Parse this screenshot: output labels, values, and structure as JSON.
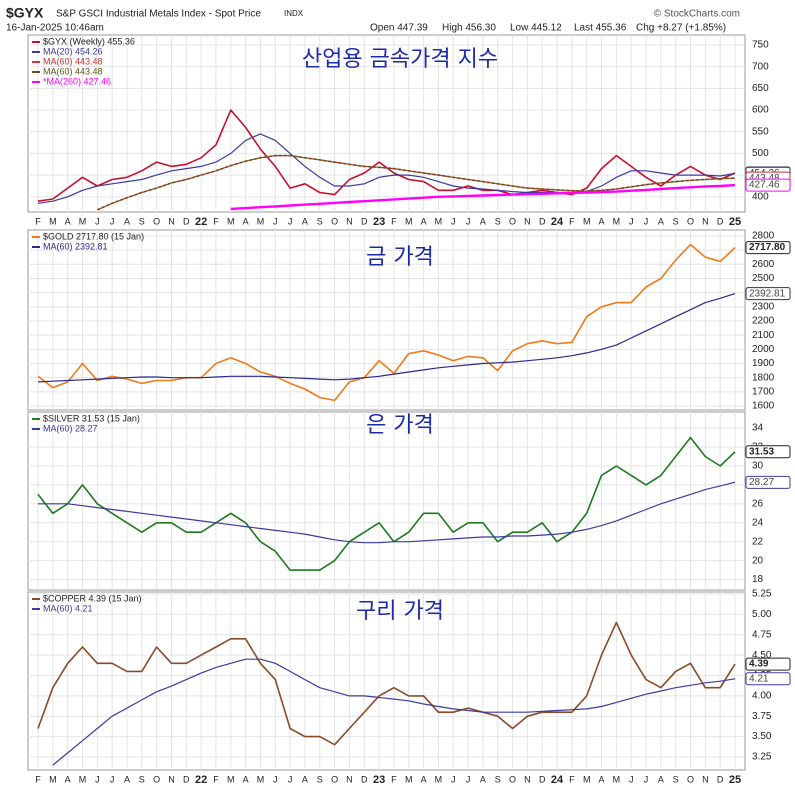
{
  "header": {
    "symbol": "$GYX",
    "name": "S&P GSCI Industrial Metals Index - Spot Price",
    "exchange": "INDX",
    "credit": "© StockCharts.com",
    "date": "16-Jan-2025 10:46am",
    "open": "Open 447.39",
    "high": "High 456.30",
    "low": "Low 445.12",
    "last": "Last 455.36",
    "change": "Chg +8.27 (+1.85%)"
  },
  "chart_data": [
    {
      "type": "line",
      "annotation": "산업용 금속가격 지수",
      "categories": [
        "F",
        "M",
        "A",
        "M",
        "J",
        "J",
        "A",
        "S",
        "O",
        "N",
        "D",
        "22",
        "F",
        "M",
        "A",
        "M",
        "J",
        "J",
        "A",
        "S",
        "O",
        "N",
        "D",
        "23",
        "F",
        "M",
        "A",
        "M",
        "J",
        "J",
        "A",
        "S",
        "O",
        "N",
        "D",
        "24",
        "F",
        "M",
        "A",
        "M",
        "J",
        "J",
        "A",
        "S",
        "O",
        "N",
        "D",
        "25"
      ],
      "ylim": [
        365,
        773
      ],
      "yticks": [
        400,
        450,
        500,
        550,
        600,
        650,
        700,
        750
      ],
      "grid": true,
      "series": [
        {
          "name": "$GYX (Weekly) 455.36",
          "color": "#c8102e",
          "width": 1.6,
          "end_label": "455.36",
          "values": [
            390,
            395,
            420,
            445,
            425,
            440,
            445,
            460,
            480,
            470,
            475,
            490,
            520,
            600,
            560,
            510,
            470,
            420,
            430,
            410,
            405,
            440,
            455,
            480,
            455,
            440,
            435,
            415,
            415,
            425,
            415,
            415,
            405,
            410,
            415,
            410,
            405,
            420,
            465,
            495,
            470,
            445,
            425,
            450,
            470,
            450,
            440,
            455
          ]
        },
        {
          "name": "MA(20) 454.26",
          "color": "#3b3b9e",
          "width": 1.2,
          "end_label": "454.26",
          "values": [
            385,
            390,
            400,
            415,
            425,
            430,
            435,
            440,
            450,
            460,
            465,
            470,
            480,
            500,
            530,
            545,
            530,
            500,
            470,
            445,
            425,
            425,
            430,
            445,
            450,
            450,
            445,
            435,
            425,
            420,
            418,
            415,
            412,
            410,
            410,
            410,
            410,
            412,
            425,
            445,
            460,
            460,
            455,
            450,
            450,
            450,
            448,
            454
          ]
        },
        {
          "name": "MA(60) 443.48",
          "color": "#d03030",
          "width": 1.2,
          "end_label": "443.48",
          "values": [
            null,
            null,
            null,
            null,
            370,
            385,
            398,
            410,
            420,
            432,
            440,
            450,
            460,
            472,
            482,
            490,
            495,
            495,
            490,
            485,
            480,
            475,
            470,
            468,
            465,
            460,
            455,
            450,
            445,
            440,
            435,
            430,
            425,
            420,
            418,
            416,
            414,
            413,
            415,
            418,
            423,
            428,
            432,
            435,
            438,
            440,
            442,
            443
          ]
        },
        {
          "name": "MA(60) 443.48",
          "color": "#5a5a1a",
          "width": 1.6,
          "dash": true,
          "values": [
            null,
            null,
            null,
            null,
            370,
            385,
            398,
            410,
            420,
            432,
            440,
            450,
            460,
            472,
            482,
            490,
            495,
            495,
            490,
            485,
            480,
            475,
            470,
            468,
            465,
            460,
            455,
            450,
            445,
            440,
            435,
            430,
            425,
            420,
            418,
            416,
            414,
            413,
            415,
            418,
            423,
            428,
            432,
            435,
            438,
            440,
            442,
            443
          ]
        },
        {
          "name": "*MA(260) 427.46",
          "color": "#ff00ff",
          "width": 2.4,
          "end_label": "427.46",
          "values": [
            null,
            null,
            null,
            null,
            null,
            null,
            null,
            null,
            null,
            null,
            null,
            null,
            null,
            372,
            374,
            376,
            378,
            380,
            382,
            384,
            386,
            388,
            390,
            392,
            394,
            396,
            398,
            400,
            401,
            402,
            403,
            404,
            405,
            406,
            407,
            408,
            409,
            410,
            411,
            412,
            414,
            416,
            418,
            420,
            422,
            424,
            425,
            427
          ]
        }
      ]
    },
    {
      "type": "line",
      "annotation": "금 가격",
      "ylim": [
        1572,
        2842
      ],
      "yticks": [
        1600,
        1700,
        1800,
        1900,
        2000,
        2100,
        2200,
        2300,
        2400,
        2500,
        2600,
        2700,
        2800
      ],
      "grid": true,
      "series": [
        {
          "name": "$GOLD 2717.80 (15 Jan)",
          "color": "#f07a1a",
          "width": 1.6,
          "end_label": "2717.80",
          "values": [
            1810,
            1730,
            1770,
            1900,
            1780,
            1810,
            1790,
            1760,
            1780,
            1780,
            1800,
            1800,
            1900,
            1940,
            1900,
            1840,
            1810,
            1760,
            1720,
            1660,
            1640,
            1770,
            1800,
            1920,
            1830,
            1970,
            1990,
            1960,
            1920,
            1950,
            1940,
            1850,
            1990,
            2040,
            2060,
            2040,
            2050,
            2230,
            2300,
            2330,
            2330,
            2440,
            2500,
            2630,
            2740,
            2650,
            2620,
            2718
          ]
        },
        {
          "name": "MA(60) 2392.81",
          "color": "#2a2a8a",
          "width": 1.2,
          "end_label": "2392.81",
          "values": [
            1770,
            1775,
            1780,
            1785,
            1790,
            1795,
            1800,
            1805,
            1805,
            1800,
            1800,
            1800,
            1805,
            1810,
            1810,
            1810,
            1805,
            1800,
            1795,
            1790,
            1785,
            1790,
            1800,
            1810,
            1825,
            1840,
            1855,
            1870,
            1880,
            1890,
            1900,
            1905,
            1910,
            1920,
            1930,
            1940,
            1955,
            1975,
            2000,
            2030,
            2080,
            2130,
            2180,
            2230,
            2280,
            2330,
            2360,
            2393
          ]
        }
      ]
    },
    {
      "type": "line",
      "annotation": "은 가격",
      "ylim": [
        16.9,
        35.7
      ],
      "yticks": [
        18,
        20,
        22,
        24,
        26,
        28,
        30,
        32,
        34
      ],
      "grid": true,
      "series": [
        {
          "name": "$SILVER 31.53 (15 Jan)",
          "color": "#1e7a1e",
          "width": 1.6,
          "end_label": "31.53",
          "values": [
            27,
            25,
            26,
            28,
            26,
            25,
            24,
            23,
            24,
            24,
            23,
            23,
            24,
            25,
            24,
            22,
            21,
            19,
            19,
            19,
            20,
            22,
            23,
            24,
            22,
            23,
            25,
            25,
            23,
            24,
            24,
            22,
            23,
            23,
            24,
            22,
            23,
            25,
            29,
            30,
            29,
            28,
            29,
            31,
            33,
            31,
            30,
            31.5
          ]
        },
        {
          "name": "MA(60) 28.27",
          "color": "#3b3b9e",
          "width": 1.2,
          "end_label": "28.27",
          "values": [
            26,
            26,
            26,
            25.8,
            25.6,
            25.4,
            25.2,
            25,
            24.8,
            24.6,
            24.4,
            24.2,
            24,
            23.8,
            23.6,
            23.4,
            23.2,
            23,
            22.8,
            22.5,
            22.2,
            22,
            21.9,
            21.9,
            22,
            22,
            22.1,
            22.2,
            22.3,
            22.4,
            22.5,
            22.5,
            22.6,
            22.6,
            22.7,
            22.8,
            23,
            23.3,
            23.7,
            24.2,
            24.8,
            25.4,
            26,
            26.5,
            27,
            27.5,
            27.9,
            28.27
          ]
        }
      ]
    },
    {
      "type": "line",
      "annotation": "구리 가격",
      "categories": [
        "F",
        "M",
        "A",
        "M",
        "J",
        "J",
        "A",
        "S",
        "O",
        "N",
        "D",
        "22",
        "F",
        "M",
        "A",
        "M",
        "J",
        "J",
        "A",
        "S",
        "O",
        "N",
        "D",
        "23",
        "F",
        "M",
        "A",
        "M",
        "J",
        "J",
        "A",
        "S",
        "O",
        "N",
        "D",
        "24",
        "F",
        "M",
        "A",
        "M",
        "J",
        "J",
        "A",
        "S",
        "O",
        "N",
        "D",
        "25"
      ],
      "ylim": [
        3.09,
        5.275
      ],
      "yticks": [
        3.25,
        {
          "value": 3.5,
          "label": "3.50"
        },
        3.75,
        {
          "value": 4,
          "label": "4.00"
        },
        4.25,
        {
          "value": 4.5,
          "label": "4.50"
        },
        4.75,
        {
          "value": 5,
          "label": "5.00"
        },
        5.25
      ],
      "grid": true,
      "series": [
        {
          "name": "$COPPER 4.39 (15 Jan)",
          "color": "#8b4a2a",
          "width": 1.6,
          "end_label": "4.39",
          "values": [
            3.6,
            4.1,
            4.4,
            4.6,
            4.4,
            4.4,
            4.3,
            4.3,
            4.6,
            4.4,
            4.4,
            4.5,
            4.6,
            4.7,
            4.7,
            4.4,
            4.2,
            3.6,
            3.5,
            3.5,
            3.4,
            3.6,
            3.8,
            4,
            4.1,
            4,
            4,
            3.8,
            3.8,
            3.85,
            3.8,
            3.75,
            3.6,
            3.75,
            3.8,
            3.8,
            3.8,
            4,
            4.5,
            4.9,
            4.5,
            4.2,
            4.1,
            4.3,
            4.4,
            4.1,
            4.1,
            4.39
          ]
        },
        {
          "name": "MA(60) 4.21",
          "color": "#3b3b9e",
          "width": 1.2,
          "end_label": "4.21",
          "values": [
            null,
            3.15,
            3.3,
            3.45,
            3.6,
            3.75,
            3.85,
            3.95,
            4.05,
            4.12,
            4.2,
            4.28,
            4.35,
            4.4,
            4.45,
            4.45,
            4.4,
            4.3,
            4.2,
            4.1,
            4.05,
            4,
            4,
            3.98,
            3.96,
            3.94,
            3.9,
            3.87,
            3.84,
            3.82,
            3.8,
            3.8,
            3.8,
            3.8,
            3.81,
            3.82,
            3.83,
            3.84,
            3.87,
            3.92,
            3.97,
            4.02,
            4.06,
            4.1,
            4.13,
            4.16,
            4.18,
            4.21
          ]
        }
      ]
    }
  ]
}
